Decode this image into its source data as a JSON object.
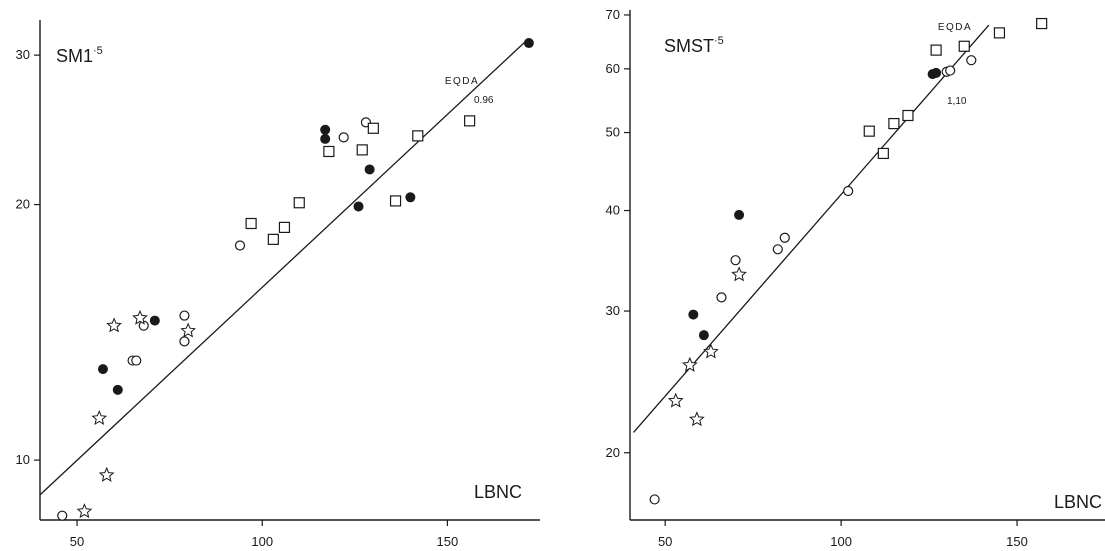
{
  "chart_data": [
    {
      "type": "scatter",
      "title": "SM1",
      "title_sup": "·5",
      "xlabel": "LBNC",
      "xlim": [
        40,
        175
      ],
      "ylim": [
        8.5,
        33
      ],
      "xticks": [
        50,
        100,
        150
      ],
      "xticks_labels": [
        "50",
        "100",
        "150"
      ],
      "yticks": [
        10,
        20,
        30
      ],
      "yticks_labels": [
        "10",
        "20",
        "30"
      ],
      "fit_line": {
        "name": "EQDA",
        "slope_label": "0.96",
        "from": [
          40,
          9.1
        ],
        "to": [
          172,
          31.4
        ]
      },
      "series": [
        {
          "symbol": "open-circle",
          "points": [
            [
              46,
              8.6
            ],
            [
              65,
              13.1
            ],
            [
              66,
              13.1
            ],
            [
              68,
              14.4
            ],
            [
              79,
              14.8
            ],
            [
              79,
              13.8
            ],
            [
              94,
              17.9
            ],
            [
              122,
              24.0
            ],
            [
              128,
              25.0
            ]
          ]
        },
        {
          "symbol": "filled-circle",
          "points": [
            [
              57,
              12.8
            ],
            [
              61,
              12.1
            ],
            [
              71,
              14.6
            ],
            [
              117,
              24.5
            ],
            [
              117,
              23.9
            ],
            [
              126,
              19.9
            ],
            [
              129,
              22.0
            ],
            [
              140,
              20.4
            ],
            [
              172,
              31.0
            ]
          ]
        },
        {
          "symbol": "open-square",
          "points": [
            [
              97,
              19.0
            ],
            [
              103,
              18.2
            ],
            [
              106,
              18.8
            ],
            [
              110,
              20.1
            ],
            [
              118,
              23.1
            ],
            [
              127,
              23.2
            ],
            [
              130,
              24.6
            ],
            [
              136,
              20.2
            ],
            [
              142,
              24.1
            ],
            [
              156,
              25.1
            ]
          ]
        },
        {
          "symbol": "star",
          "points": [
            [
              52,
              8.7
            ],
            [
              56,
              11.2
            ],
            [
              58,
              9.6
            ],
            [
              60,
              14.4
            ],
            [
              67,
              14.7
            ],
            [
              80,
              14.2
            ]
          ]
        }
      ]
    },
    {
      "type": "scatter",
      "title": "SMST",
      "title_sup": "·5",
      "xlabel": "LBNC",
      "xlim": [
        40,
        175
      ],
      "ylim": [
        16.5,
        71
      ],
      "xticks": [
        50,
        100,
        150
      ],
      "xticks_labels": [
        "50",
        "100",
        "150"
      ],
      "yticks": [
        20,
        30,
        40,
        50,
        60,
        70
      ],
      "yticks_labels": [
        "20",
        "30",
        "40",
        "50",
        "60",
        "70"
      ],
      "fit_line": {
        "name": "EQDA",
        "slope_label": "1,10",
        "from": [
          41,
          21.2
        ],
        "to": [
          142,
          68.0
        ]
      },
      "series": [
        {
          "symbol": "open-circle",
          "points": [
            [
              47,
              17.5
            ],
            [
              66,
              31.2
            ],
            [
              70,
              34.7
            ],
            [
              82,
              35.8
            ],
            [
              84,
              37.0
            ],
            [
              102,
              42.3
            ],
            [
              130,
              59.5
            ],
            [
              131,
              59.7
            ],
            [
              137,
              61.5
            ]
          ]
        },
        {
          "symbol": "filled-circle",
          "points": [
            [
              58,
              29.7
            ],
            [
              61,
              28.0
            ],
            [
              71,
              39.5
            ],
            [
              126,
              59.1
            ],
            [
              127,
              59.3
            ]
          ]
        },
        {
          "symbol": "open-square",
          "points": [
            [
              108,
              50.2
            ],
            [
              112,
              47.1
            ],
            [
              115,
              51.3
            ],
            [
              119,
              52.5
            ],
            [
              127,
              63.3
            ],
            [
              135,
              64.0
            ],
            [
              145,
              66.5
            ],
            [
              157,
              68.3
            ]
          ]
        },
        {
          "symbol": "star",
          "points": [
            [
              53,
              23.2
            ],
            [
              57,
              25.7
            ],
            [
              59,
              22.0
            ],
            [
              63,
              26.7
            ],
            [
              71,
              33.3
            ]
          ]
        }
      ]
    }
  ]
}
